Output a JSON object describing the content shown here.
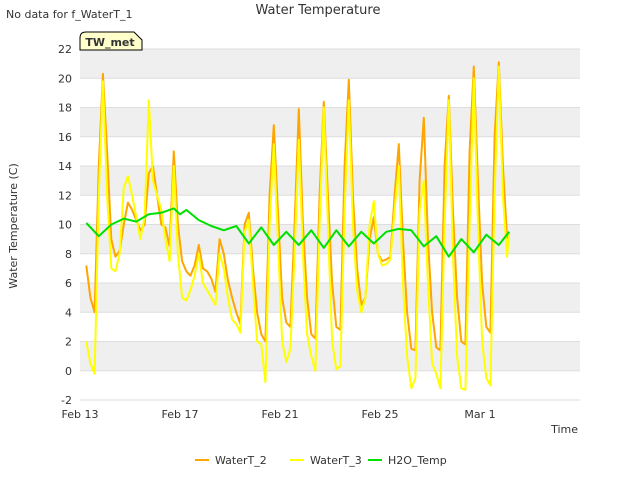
{
  "status_note": "No data for f_WaterT_1",
  "site_badge": "TW_met",
  "chart_data": {
    "type": "line",
    "title": "Water Temperature",
    "xlabel": "Time",
    "ylabel": "Water Temperature (C)",
    "ylim": [
      -2,
      22
    ],
    "y_ticks": [
      -2,
      0,
      2,
      4,
      6,
      8,
      10,
      12,
      14,
      16,
      18,
      20,
      22
    ],
    "xlim": [
      "2023-02-13",
      "2023-03-05"
    ],
    "x_ticks": [
      {
        "date": "2023-02-13",
        "label": "Feb 13"
      },
      {
        "date": "2023-02-17",
        "label": "Feb 17"
      },
      {
        "date": "2023-02-21",
        "label": "Feb 21"
      },
      {
        "date": "2023-02-25",
        "label": "Feb 25"
      },
      {
        "date": "2023-03-01",
        "label": "Mar 1"
      }
    ],
    "grid": "horizontal bands",
    "legend_position": "bottom",
    "series": [
      {
        "name": "WaterT_2",
        "color": "#FFA500",
        "points": [
          [
            "2023-02-13T06:00",
            7.2
          ],
          [
            "2023-02-13T10:00",
            5.0
          ],
          [
            "2023-02-13T14:00",
            4.0
          ],
          [
            "2023-02-13T18:00",
            14.0
          ],
          [
            "2023-02-13T22:00",
            20.3
          ],
          [
            "2023-02-14T02:00",
            15.0
          ],
          [
            "2023-02-14T06:00",
            9.0
          ],
          [
            "2023-02-14T10:00",
            7.8
          ],
          [
            "2023-02-14T14:00",
            8.2
          ],
          [
            "2023-02-14T18:00",
            10.0
          ],
          [
            "2023-02-14T22:00",
            11.5
          ],
          [
            "2023-02-15T02:00",
            11.0
          ],
          [
            "2023-02-15T06:00",
            10.3
          ],
          [
            "2023-02-15T10:00",
            9.6
          ],
          [
            "2023-02-15T14:00",
            10.0
          ],
          [
            "2023-02-15T18:00",
            13.5
          ],
          [
            "2023-02-15T22:00",
            14.0
          ],
          [
            "2023-02-16T02:00",
            12.0
          ],
          [
            "2023-02-16T06:00",
            10.0
          ],
          [
            "2023-02-16T10:00",
            9.8
          ],
          [
            "2023-02-16T14:00",
            8.5
          ],
          [
            "2023-02-16T18:00",
            15.0
          ],
          [
            "2023-02-16T22:00",
            10.0
          ],
          [
            "2023-02-17T02:00",
            7.5
          ],
          [
            "2023-02-17T06:00",
            6.8
          ],
          [
            "2023-02-17T10:00",
            6.5
          ],
          [
            "2023-02-17T14:00",
            7.2
          ],
          [
            "2023-02-17T18:00",
            8.6
          ],
          [
            "2023-02-17T22:00",
            7.0
          ],
          [
            "2023-02-18T02:00",
            6.8
          ],
          [
            "2023-02-18T06:00",
            6.3
          ],
          [
            "2023-02-18T10:00",
            5.4
          ],
          [
            "2023-02-18T14:00",
            9.0
          ],
          [
            "2023-02-18T18:00",
            8.0
          ],
          [
            "2023-02-18T22:00",
            6.2
          ],
          [
            "2023-02-19T02:00",
            5.0
          ],
          [
            "2023-02-19T06:00",
            4.0
          ],
          [
            "2023-02-19T10:00",
            3.2
          ],
          [
            "2023-02-19T14:00",
            10.0
          ],
          [
            "2023-02-19T18:00",
            10.8
          ],
          [
            "2023-02-19T22:00",
            7.0
          ],
          [
            "2023-02-20T02:00",
            4.0
          ],
          [
            "2023-02-20T06:00",
            2.5
          ],
          [
            "2023-02-20T10:00",
            2.0
          ],
          [
            "2023-02-20T14:00",
            12.0
          ],
          [
            "2023-02-20T18:00",
            16.8
          ],
          [
            "2023-02-20T22:00",
            11.0
          ],
          [
            "2023-02-21T02:00",
            5.0
          ],
          [
            "2023-02-21T06:00",
            3.3
          ],
          [
            "2023-02-21T10:00",
            3.0
          ],
          [
            "2023-02-21T14:00",
            10.0
          ],
          [
            "2023-02-21T18:00",
            17.9
          ],
          [
            "2023-02-21T22:00",
            10.0
          ],
          [
            "2023-02-22T02:00",
            5.0
          ],
          [
            "2023-02-22T06:00",
            2.5
          ],
          [
            "2023-02-22T10:00",
            2.2
          ],
          [
            "2023-02-22T14:00",
            12.0
          ],
          [
            "2023-02-22T18:00",
            18.4
          ],
          [
            "2023-02-22T22:00",
            12.0
          ],
          [
            "2023-02-23T02:00",
            6.0
          ],
          [
            "2023-02-23T06:00",
            3.0
          ],
          [
            "2023-02-23T10:00",
            2.8
          ],
          [
            "2023-02-23T14:00",
            14.0
          ],
          [
            "2023-02-23T18:00",
            19.9
          ],
          [
            "2023-02-23T22:00",
            12.0
          ],
          [
            "2023-02-24T02:00",
            7.0
          ],
          [
            "2023-02-24T06:00",
            4.5
          ],
          [
            "2023-02-24T10:00",
            5.0
          ],
          [
            "2023-02-24T14:00",
            9.0
          ],
          [
            "2023-02-24T18:00",
            10.5
          ],
          [
            "2023-02-24T22:00",
            8.0
          ],
          [
            "2023-02-25T02:00",
            7.5
          ],
          [
            "2023-02-25T06:00",
            7.6
          ],
          [
            "2023-02-25T10:00",
            7.8
          ],
          [
            "2023-02-25T14:00",
            12.0
          ],
          [
            "2023-02-25T18:00",
            15.5
          ],
          [
            "2023-02-25T22:00",
            9.0
          ],
          [
            "2023-02-26T02:00",
            4.0
          ],
          [
            "2023-02-26T06:00",
            1.5
          ],
          [
            "2023-02-26T10:00",
            1.4
          ],
          [
            "2023-02-26T14:00",
            13.0
          ],
          [
            "2023-02-26T18:00",
            17.3
          ],
          [
            "2023-02-26T22:00",
            9.0
          ],
          [
            "2023-02-27T02:00",
            4.0
          ],
          [
            "2023-02-27T06:00",
            1.6
          ],
          [
            "2023-02-27T10:00",
            1.4
          ],
          [
            "2023-02-27T14:00",
            14.0
          ],
          [
            "2023-02-27T18:00",
            18.8
          ],
          [
            "2023-02-27T22:00",
            11.0
          ],
          [
            "2023-02-28T02:00",
            5.0
          ],
          [
            "2023-02-28T06:00",
            2.0
          ],
          [
            "2023-02-28T10:00",
            1.8
          ],
          [
            "2023-02-28T14:00",
            15.0
          ],
          [
            "2023-02-28T18:00",
            20.8
          ],
          [
            "2023-02-28T22:00",
            13.0
          ],
          [
            "2023-03-01T02:00",
            6.0
          ],
          [
            "2023-03-01T06:00",
            3.0
          ],
          [
            "2023-03-01T10:00",
            2.6
          ],
          [
            "2023-03-01T14:00",
            16.0
          ],
          [
            "2023-03-01T18:00",
            21.1
          ],
          [
            "2023-03-01T22:00",
            14.0
          ],
          [
            "2023-03-02T02:00",
            9.0
          ]
        ]
      },
      {
        "name": "WaterT_3",
        "color": "#FFFF00",
        "points": [
          [
            "2023-02-13T06:00",
            2.0
          ],
          [
            "2023-02-13T10:00",
            0.5
          ],
          [
            "2023-02-13T14:00",
            -0.2
          ],
          [
            "2023-02-13T18:00",
            12.0
          ],
          [
            "2023-02-13T22:00",
            19.8
          ],
          [
            "2023-02-14T02:00",
            12.0
          ],
          [
            "2023-02-14T06:00",
            7.0
          ],
          [
            "2023-02-14T10:00",
            6.8
          ],
          [
            "2023-02-14T14:00",
            8.0
          ],
          [
            "2023-02-14T18:00",
            12.5
          ],
          [
            "2023-02-14T22:00",
            13.3
          ],
          [
            "2023-02-15T02:00",
            12.0
          ],
          [
            "2023-02-15T06:00",
            10.5
          ],
          [
            "2023-02-15T10:00",
            9.0
          ],
          [
            "2023-02-15T14:00",
            10.5
          ],
          [
            "2023-02-15T18:00",
            18.5
          ],
          [
            "2023-02-15T22:00",
            13.0
          ],
          [
            "2023-02-16T02:00",
            12.0
          ],
          [
            "2023-02-16T06:00",
            11.0
          ],
          [
            "2023-02-16T10:00",
            9.0
          ],
          [
            "2023-02-16T14:00",
            7.5
          ],
          [
            "2023-02-16T18:00",
            14.0
          ],
          [
            "2023-02-16T22:00",
            8.0
          ],
          [
            "2023-02-17T02:00",
            5.0
          ],
          [
            "2023-02-17T06:00",
            4.8
          ],
          [
            "2023-02-17T10:00",
            5.5
          ],
          [
            "2023-02-17T14:00",
            6.5
          ],
          [
            "2023-02-17T18:00",
            8.0
          ],
          [
            "2023-02-17T22:00",
            6.0
          ],
          [
            "2023-02-18T02:00",
            5.5
          ],
          [
            "2023-02-18T06:00",
            5.0
          ],
          [
            "2023-02-18T10:00",
            4.5
          ],
          [
            "2023-02-18T14:00",
            8.0
          ],
          [
            "2023-02-18T18:00",
            7.0
          ],
          [
            "2023-02-18T22:00",
            5.0
          ],
          [
            "2023-02-19T02:00",
            3.5
          ],
          [
            "2023-02-19T06:00",
            3.2
          ],
          [
            "2023-02-19T10:00",
            2.6
          ],
          [
            "2023-02-19T14:00",
            9.5
          ],
          [
            "2023-02-19T18:00",
            10.3
          ],
          [
            "2023-02-19T22:00",
            6.0
          ],
          [
            "2023-02-20T02:00",
            2.0
          ],
          [
            "2023-02-20T06:00",
            1.8
          ],
          [
            "2023-02-20T10:00",
            -0.8
          ],
          [
            "2023-02-20T14:00",
            10.0
          ],
          [
            "2023-02-20T18:00",
            15.5
          ],
          [
            "2023-02-20T22:00",
            9.0
          ],
          [
            "2023-02-21T02:00",
            2.0
          ],
          [
            "2023-02-21T06:00",
            0.6
          ],
          [
            "2023-02-21T10:00",
            1.5
          ],
          [
            "2023-02-21T14:00",
            8.0
          ],
          [
            "2023-02-21T18:00",
            15.8
          ],
          [
            "2023-02-21T22:00",
            8.0
          ],
          [
            "2023-02-22T02:00",
            2.5
          ],
          [
            "2023-02-22T06:00",
            1.0
          ],
          [
            "2023-02-22T10:00",
            0.0
          ],
          [
            "2023-02-22T14:00",
            10.0
          ],
          [
            "2023-02-22T18:00",
            18.0
          ],
          [
            "2023-02-22T22:00",
            10.0
          ],
          [
            "2023-02-23T02:00",
            2.0
          ],
          [
            "2023-02-23T06:00",
            0.1
          ],
          [
            "2023-02-23T10:00",
            0.3
          ],
          [
            "2023-02-23T14:00",
            11.0
          ],
          [
            "2023-02-23T18:00",
            18.5
          ],
          [
            "2023-02-23T22:00",
            10.0
          ],
          [
            "2023-02-24T02:00",
            5.5
          ],
          [
            "2023-02-24T06:00",
            4.0
          ],
          [
            "2023-02-24T10:00",
            5.0
          ],
          [
            "2023-02-24T14:00",
            10.0
          ],
          [
            "2023-02-24T18:00",
            11.6
          ],
          [
            "2023-02-24T22:00",
            8.0
          ],
          [
            "2023-02-25T02:00",
            7.2
          ],
          [
            "2023-02-25T06:00",
            7.3
          ],
          [
            "2023-02-25T10:00",
            7.6
          ],
          [
            "2023-02-25T14:00",
            11.0
          ],
          [
            "2023-02-25T18:00",
            14.0
          ],
          [
            "2023-02-25T22:00",
            6.0
          ],
          [
            "2023-02-26T02:00",
            1.0
          ],
          [
            "2023-02-26T06:00",
            -1.2
          ],
          [
            "2023-02-26T10:00",
            -0.5
          ],
          [
            "2023-02-26T14:00",
            11.0
          ],
          [
            "2023-02-26T18:00",
            13.0
          ],
          [
            "2023-02-26T22:00",
            6.0
          ],
          [
            "2023-02-27T02:00",
            0.5
          ],
          [
            "2023-02-27T06:00",
            -0.2
          ],
          [
            "2023-02-27T10:00",
            -1.2
          ],
          [
            "2023-02-27T14:00",
            10.0
          ],
          [
            "2023-02-27T18:00",
            18.5
          ],
          [
            "2023-02-27T22:00",
            8.0
          ],
          [
            "2023-02-28T02:00",
            1.0
          ],
          [
            "2023-02-28T06:00",
            -1.2
          ],
          [
            "2023-02-28T10:00",
            -1.3
          ],
          [
            "2023-02-28T14:00",
            10.0
          ],
          [
            "2023-02-28T18:00",
            20.0
          ],
          [
            "2023-02-28T22:00",
            10.0
          ],
          [
            "2023-03-01T02:00",
            2.0
          ],
          [
            "2023-03-01T06:00",
            -0.5
          ],
          [
            "2023-03-01T10:00",
            -1.0
          ],
          [
            "2023-03-01T14:00",
            12.0
          ],
          [
            "2023-03-01T18:00",
            20.8
          ],
          [
            "2023-03-01T22:00",
            12.0
          ],
          [
            "2023-03-02T02:00",
            7.8
          ],
          [
            "2023-03-02T04:00",
            9.5
          ]
        ]
      },
      {
        "name": "H2O_Temp",
        "color": "#00E000",
        "points": [
          [
            "2023-02-13T06:00",
            10.1
          ],
          [
            "2023-02-13T18:00",
            9.2
          ],
          [
            "2023-02-14T06:00",
            10.0
          ],
          [
            "2023-02-14T18:00",
            10.4
          ],
          [
            "2023-02-15T06:00",
            10.2
          ],
          [
            "2023-02-15T18:00",
            10.7
          ],
          [
            "2023-02-16T06:00",
            10.8
          ],
          [
            "2023-02-16T18:00",
            11.1
          ],
          [
            "2023-02-17T00:00",
            10.7
          ],
          [
            "2023-02-17T06:00",
            11.0
          ],
          [
            "2023-02-17T18:00",
            10.3
          ],
          [
            "2023-02-18T06:00",
            9.9
          ],
          [
            "2023-02-18T18:00",
            9.6
          ],
          [
            "2023-02-19T06:00",
            9.9
          ],
          [
            "2023-02-19T18:00",
            8.7
          ],
          [
            "2023-02-20T06:00",
            9.8
          ],
          [
            "2023-02-20T18:00",
            8.6
          ],
          [
            "2023-02-21T06:00",
            9.5
          ],
          [
            "2023-02-21T18:00",
            8.6
          ],
          [
            "2023-02-22T06:00",
            9.6
          ],
          [
            "2023-02-22T18:00",
            8.4
          ],
          [
            "2023-02-23T06:00",
            9.6
          ],
          [
            "2023-02-23T18:00",
            8.5
          ],
          [
            "2023-02-24T06:00",
            9.5
          ],
          [
            "2023-02-24T18:00",
            8.7
          ],
          [
            "2023-02-25T06:00",
            9.5
          ],
          [
            "2023-02-25T18:00",
            9.7
          ],
          [
            "2023-02-26T06:00",
            9.6
          ],
          [
            "2023-02-26T18:00",
            8.5
          ],
          [
            "2023-02-27T06:00",
            9.2
          ],
          [
            "2023-02-27T18:00",
            7.8
          ],
          [
            "2023-02-28T06:00",
            9.0
          ],
          [
            "2023-02-28T18:00",
            8.1
          ],
          [
            "2023-03-01T06:00",
            9.3
          ],
          [
            "2023-03-01T18:00",
            8.6
          ],
          [
            "2023-03-02T04:00",
            9.5
          ]
        ]
      }
    ]
  }
}
